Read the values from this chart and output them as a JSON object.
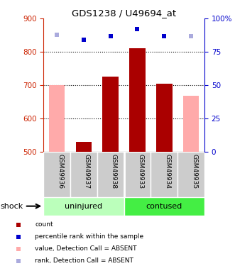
{
  "title": "GDS1238 / U49694_at",
  "samples": [
    "GSM49936",
    "GSM49937",
    "GSM49938",
    "GSM49933",
    "GSM49934",
    "GSM49935"
  ],
  "bar_values": [
    null,
    530,
    725,
    810,
    705,
    null
  ],
  "bar_absent_values": [
    700,
    null,
    null,
    null,
    null,
    668
  ],
  "percentile_values": [
    88,
    84,
    87,
    92,
    87,
    87
  ],
  "percentile_absent": [
    true,
    false,
    false,
    false,
    false,
    true
  ],
  "ylim_left": [
    500,
    900
  ],
  "ylim_right": [
    0,
    100
  ],
  "yticks_left": [
    500,
    600,
    700,
    800,
    900
  ],
  "yticks_right": [
    0,
    25,
    50,
    75,
    100
  ],
  "ytick_right_labels": [
    "0",
    "25",
    "50",
    "75",
    "100%"
  ],
  "gridlines": [
    600,
    700,
    800
  ],
  "group1_label": "uninjured",
  "group2_label": "contused",
  "factor_label": "shock",
  "bar_color": "#aa0000",
  "bar_absent_color": "#ffaaaa",
  "dot_color": "#0000cc",
  "dot_absent_color": "#aaaadd",
  "group1_bg": "#bbffbb",
  "group2_bg": "#44ee44",
  "sample_bg": "#cccccc",
  "left_axis_color": "#cc2200",
  "right_axis_color": "#0000cc",
  "legend_items": [
    {
      "color": "#aa0000",
      "label": "count"
    },
    {
      "color": "#0000cc",
      "label": "percentile rank within the sample"
    },
    {
      "color": "#ffaaaa",
      "label": "value, Detection Call = ABSENT"
    },
    {
      "color": "#aaaadd",
      "label": "rank, Detection Call = ABSENT"
    }
  ]
}
